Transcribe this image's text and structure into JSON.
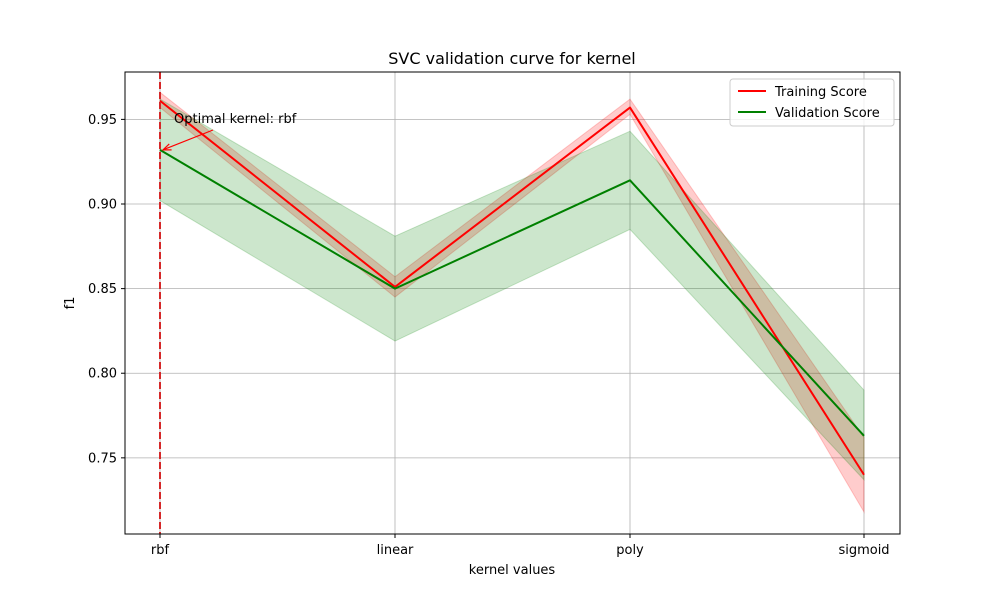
{
  "chart_data": {
    "type": "line",
    "title": "SVC validation curve for kernel",
    "xlabel": "kernel values",
    "ylabel": "f1",
    "categories": [
      "rbf",
      "linear",
      "poly",
      "sigmoid"
    ],
    "ylim": [
      0.705,
      0.978
    ],
    "yticks": [
      0.75,
      0.8,
      0.85,
      0.9,
      0.95
    ],
    "ytick_labels": [
      "0.75",
      "0.80",
      "0.85",
      "0.90",
      "0.95"
    ],
    "grid": true,
    "legend_position": "top-right",
    "series": [
      {
        "name": "Training Score",
        "color": "#ff0000",
        "values": [
          0.961,
          0.851,
          0.957,
          0.74
        ],
        "lower": [
          0.957,
          0.845,
          0.953,
          0.718
        ],
        "upper": [
          0.966,
          0.857,
          0.962,
          0.762
        ],
        "band_color": "#ff0000",
        "band_opacity": 0.2
      },
      {
        "name": "Validation Score",
        "color": "#008000",
        "values": [
          0.932,
          0.85,
          0.914,
          0.763
        ],
        "lower": [
          0.902,
          0.819,
          0.885,
          0.737
        ],
        "upper": [
          0.962,
          0.881,
          0.943,
          0.79
        ],
        "band_color": "#008000",
        "band_opacity": 0.2
      }
    ],
    "vline": {
      "category": "rbf",
      "color": "#d62728",
      "style": "dashed"
    },
    "annotation": {
      "text": "Optimal kernel: rbf",
      "target_category": "rbf",
      "target_value": 0.932,
      "color": "#ff0000"
    }
  }
}
